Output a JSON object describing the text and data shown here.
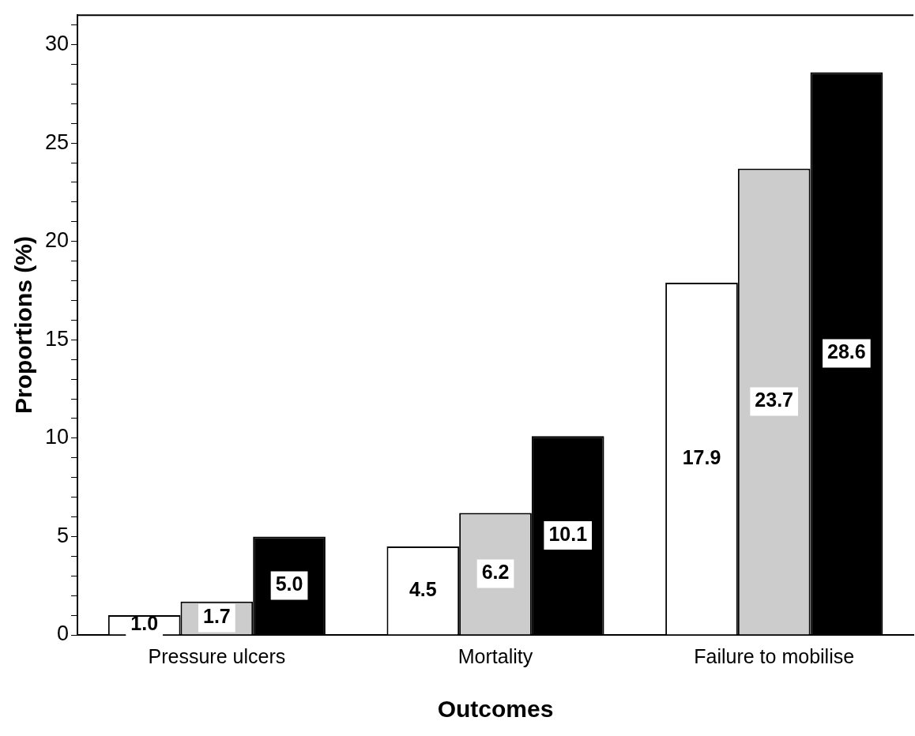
{
  "chart_data": {
    "type": "bar",
    "xlabel": "Outcomes",
    "ylabel": "Proportions (%)",
    "categories": [
      "Pressure ulcers",
      "Mortality",
      "Failure to mobilise"
    ],
    "series": [
      {
        "color": "#ffffff",
        "values": [
          1.0,
          4.5,
          17.9
        ],
        "value_labels": [
          "1.0",
          "4.5",
          "17.9"
        ]
      },
      {
        "color": "#cccccc",
        "values": [
          1.7,
          6.2,
          23.7
        ],
        "value_labels": [
          "1.7",
          "6.2",
          "23.7"
        ]
      },
      {
        "color": "#000000",
        "values": [
          5.0,
          10.1,
          28.6
        ],
        "value_labels": [
          "5.0",
          "10.1",
          "28.6"
        ]
      }
    ],
    "ylim": [
      0,
      31.5
    ],
    "yticks": [
      0,
      {
        "value": 1,
        "label": null
      },
      {
        "value": 2,
        "label": null
      },
      {
        "value": 3,
        "label": null
      },
      {
        "value": 4,
        "label": null
      },
      5,
      {
        "value": 6,
        "label": null
      },
      {
        "value": 7,
        "label": null
      },
      {
        "value": 8,
        "label": null
      },
      {
        "value": 9,
        "label": null
      },
      10,
      {
        "value": 11,
        "label": null
      },
      {
        "value": 12,
        "label": null
      },
      {
        "value": 13,
        "label": null
      },
      {
        "value": 14,
        "label": null
      },
      15,
      {
        "value": 16,
        "label": null
      },
      {
        "value": 17,
        "label": null
      },
      {
        "value": 18,
        "label": null
      },
      {
        "value": 19,
        "label": null
      },
      20,
      {
        "value": 21,
        "label": null
      },
      {
        "value": 22,
        "label": null
      },
      {
        "value": 23,
        "label": null
      },
      {
        "value": 24,
        "label": null
      },
      25,
      {
        "value": 26,
        "label": null
      },
      {
        "value": 27,
        "label": null
      },
      {
        "value": 28,
        "label": null
      },
      {
        "value": 29,
        "label": null
      },
      30,
      {
        "value": 31,
        "label": null
      }
    ],
    "grid": false,
    "legend": false
  }
}
